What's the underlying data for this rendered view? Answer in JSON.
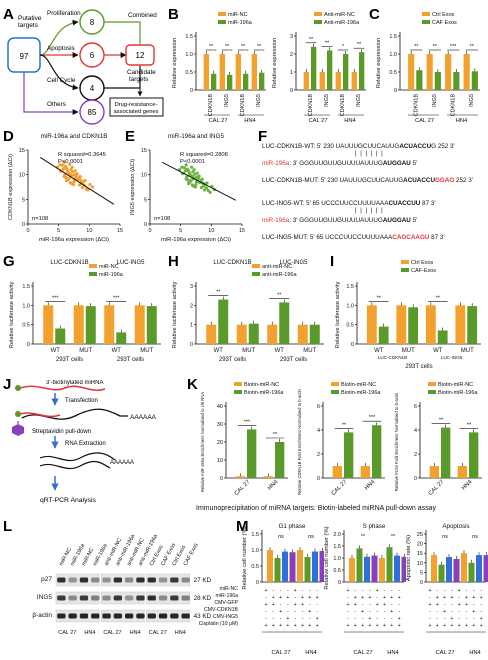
{
  "colors": {
    "orange": "#f2a02e",
    "green": "#5a9a2a",
    "blue": "#2f6fd6",
    "red": "#e23636",
    "purple": "#8a3fbf",
    "ink": "#111111",
    "scatter_orange": "#f2a02e",
    "scatter_green": "#6db33f"
  },
  "panel_letters": {
    "A": "A",
    "B": "B",
    "C": "C",
    "D": "D",
    "E": "E",
    "F": "F",
    "G": "G",
    "H": "H",
    "I": "I",
    "J": "J",
    "K": "K",
    "L": "L",
    "M": "M"
  },
  "panelA": {
    "putative_label": "Putative\ntargets",
    "putative_value": "97",
    "proliferation": "Proliferation",
    "apoptosis": "Apoptosis",
    "cell_cycle": "Cell Cycle",
    "others": "Others",
    "count_prolif": "8",
    "count_apop": "6",
    "count_cycle": "4",
    "count_others": "85",
    "combined": "Combined",
    "combined_value": "12",
    "candidate": "Candidate\ntargets",
    "drug": "Drug-resistance-\nassociated genes"
  },
  "chart_data": [
    {
      "id": "B1",
      "type": "bar",
      "title": "",
      "ylabel": "Relative expression",
      "ylim": [
        0,
        1.5
      ],
      "yticks": [
        "0",
        "0.5",
        "1.0",
        "1.5"
      ],
      "categories": [
        "CDKN1B",
        "ING5",
        "CDKN1B",
        "ING5"
      ],
      "groups": [
        "CAL 27",
        "HN4"
      ],
      "series": [
        {
          "name": "miR-NC",
          "values": [
            1.0,
            1.0,
            1.0,
            1.0
          ]
        },
        {
          "name": "miR-196a",
          "values": [
            0.45,
            0.42,
            0.45,
            0.48
          ]
        }
      ],
      "sig": [
        "**",
        "**",
        "**",
        "**"
      ]
    },
    {
      "id": "B2",
      "type": "bar",
      "title": "",
      "ylabel": "Relative expression",
      "ylim": [
        0,
        3
      ],
      "yticks": [
        "0",
        "1",
        "2",
        "3"
      ],
      "categories": [
        "CDKN1B",
        "ING5",
        "CDKN1B",
        "ING5"
      ],
      "groups": [
        "CAL 27",
        "HN4"
      ],
      "series": [
        {
          "name": "Anti-miR-NC",
          "values": [
            1.0,
            1.0,
            1.0,
            1.0
          ]
        },
        {
          "name": "Anti-miR-196a",
          "values": [
            2.4,
            2.2,
            2.0,
            2.1
          ]
        }
      ],
      "sig": [
        "**",
        "**",
        "*",
        "**"
      ]
    },
    {
      "id": "C",
      "type": "bar",
      "title": "",
      "ylabel": "Relative expression",
      "ylim": [
        0,
        1.5
      ],
      "yticks": [
        "0",
        "0.5",
        "1.0",
        "1.5"
      ],
      "categories": [
        "CDKN1B",
        "ING5",
        "CDKN1B",
        "ING5"
      ],
      "groups": [
        "CAL 27",
        "HN4"
      ],
      "series": [
        {
          "name": "Ctrl Exos",
          "values": [
            1.0,
            1.0,
            1.0,
            1.0
          ]
        },
        {
          "name": "CAF Exos",
          "values": [
            0.55,
            0.5,
            0.5,
            0.52
          ]
        }
      ],
      "sig": [
        "**",
        "**",
        "***",
        "**"
      ]
    },
    {
      "id": "D",
      "type": "scatter",
      "title": "miR-196a and CDKN1B",
      "xlabel": "miR-196a expression (ΔCt)",
      "ylabel": "CDKN1B expression (ΔCt)",
      "xlim": [
        0,
        15
      ],
      "ylim": [
        0,
        15
      ],
      "xticks": [
        "0",
        "5",
        "10",
        "15"
      ],
      "yticks": [
        "0",
        "5",
        "10",
        "15"
      ],
      "annot": [
        "R squared=0.3645",
        "P<0.0001"
      ],
      "n": "n=108",
      "fit": [
        [
          2,
          13.5
        ],
        [
          14,
          4.0
        ]
      ],
      "points": [
        [
          6.5,
          10.5
        ],
        [
          7.2,
          9.8
        ],
        [
          5.8,
          11.2
        ],
        [
          8.1,
          9.0
        ],
        [
          6.9,
          10.1
        ],
        [
          7.5,
          8.6
        ],
        [
          5.2,
          12.0
        ],
        [
          8.8,
          8.2
        ],
        [
          6.1,
          11.7
        ],
        [
          7.8,
          9.5
        ],
        [
          9.5,
          7.1
        ],
        [
          6.7,
          9.2
        ],
        [
          7.0,
          11.0
        ],
        [
          5.5,
          10.8
        ],
        [
          8.4,
          7.9
        ],
        [
          7.3,
          10.6
        ],
        [
          6.3,
          8.8
        ],
        [
          9.0,
          8.5
        ],
        [
          10.5,
          7.5
        ],
        [
          4.8,
          11.5
        ],
        [
          7.6,
          9.1
        ],
        [
          8.0,
          10.2
        ],
        [
          6.8,
          12.1
        ],
        [
          5.9,
          9.6
        ],
        [
          8.6,
          8.9
        ],
        [
          7.1,
          8.2
        ],
        [
          6.4,
          10.9
        ],
        [
          9.2,
          7.8
        ],
        [
          7.9,
          9.9
        ],
        [
          5.6,
          11.9
        ],
        [
          8.3,
          9.3
        ],
        [
          6.6,
          10.4
        ],
        [
          7.4,
          8.0
        ],
        [
          9.8,
          6.9
        ],
        [
          6.2,
          9.4
        ],
        [
          8.7,
          8.6
        ],
        [
          5.9,
          12.5
        ],
        [
          7.7,
          10.8
        ],
        [
          6.0,
          10.0
        ],
        [
          8.9,
          7.4
        ],
        [
          7.2,
          11.5
        ],
        [
          10.1,
          8.0
        ],
        [
          6.5,
          9.0
        ],
        [
          7.0,
          9.7
        ],
        [
          5.3,
          10.7
        ],
        [
          8.5,
          9.6
        ],
        [
          6.9,
          8.4
        ],
        [
          7.6,
          10.0
        ],
        [
          9.3,
          8.8
        ],
        [
          6.3,
          11.3
        ]
      ]
    },
    {
      "id": "E",
      "type": "scatter",
      "title": "miR-196a and ING5",
      "xlabel": "miR-196a expression (ΔCt)",
      "ylabel": "ING5 expression (ΔCt)",
      "xlim": [
        0,
        15
      ],
      "ylim": [
        0,
        15
      ],
      "xticks": [
        "0",
        "5",
        "10",
        "15"
      ],
      "yticks": [
        "0",
        "5",
        "10",
        "15"
      ],
      "annot": [
        "R squared=0.2808",
        "P<0.0001"
      ],
      "n": "n=108",
      "fit": [
        [
          2,
          12.5
        ],
        [
          14,
          4.8
        ]
      ],
      "points": [
        [
          6.5,
          10.0
        ],
        [
          7.2,
          9.3
        ],
        [
          5.8,
          10.8
        ],
        [
          8.1,
          8.4
        ],
        [
          6.9,
          9.7
        ],
        [
          7.5,
          8.0
        ],
        [
          5.2,
          11.5
        ],
        [
          8.8,
          7.7
        ],
        [
          6.1,
          11.1
        ],
        [
          7.8,
          9.0
        ],
        [
          9.5,
          6.8
        ],
        [
          6.7,
          8.8
        ],
        [
          7.0,
          10.6
        ],
        [
          5.5,
          10.3
        ],
        [
          8.4,
          7.4
        ],
        [
          7.3,
          10.1
        ],
        [
          6.3,
          8.2
        ],
        [
          9.0,
          8.1
        ],
        [
          10.5,
          7.0
        ],
        [
          4.8,
          11.0
        ],
        [
          7.6,
          8.6
        ],
        [
          8.0,
          9.7
        ],
        [
          6.8,
          11.5
        ],
        [
          5.9,
          9.1
        ],
        [
          8.6,
          8.3
        ],
        [
          7.1,
          7.7
        ],
        [
          6.4,
          10.4
        ],
        [
          9.2,
          7.3
        ],
        [
          7.9,
          9.4
        ],
        [
          5.6,
          11.4
        ],
        [
          8.3,
          8.8
        ],
        [
          6.6,
          9.9
        ],
        [
          7.4,
          7.5
        ],
        [
          9.8,
          6.4
        ],
        [
          6.2,
          8.9
        ],
        [
          8.7,
          8.1
        ],
        [
          5.9,
          12.0
        ],
        [
          7.7,
          10.3
        ],
        [
          6.0,
          9.5
        ],
        [
          8.9,
          6.9
        ],
        [
          7.2,
          11.0
        ],
        [
          10.1,
          7.6
        ],
        [
          6.5,
          8.5
        ],
        [
          7.0,
          9.2
        ],
        [
          5.3,
          10.2
        ],
        [
          8.5,
          9.1
        ],
        [
          6.9,
          7.9
        ],
        [
          7.6,
          9.5
        ],
        [
          9.3,
          8.3
        ],
        [
          6.3,
          10.8
        ]
      ]
    },
    {
      "id": "G",
      "type": "bar",
      "title": "",
      "ylabel": "Relative luciferase activity",
      "ylim": [
        0,
        1.5
      ],
      "yticks": [
        "0",
        "0.5",
        "1.0",
        "1.5"
      ],
      "categories": [
        "WT",
        "MUT",
        "WT",
        "MUT"
      ],
      "subtitles": [
        "LUC-CDKN1B",
        "LUC-ING5"
      ],
      "xlabel": "293T cells",
      "series": [
        {
          "name": "miR-NC",
          "values": [
            1.0,
            1.0,
            1.0,
            1.0
          ]
        },
        {
          "name": "miR-196a",
          "values": [
            0.4,
            0.98,
            0.3,
            0.98
          ]
        }
      ],
      "sig": [
        "***",
        "",
        "***",
        ""
      ]
    },
    {
      "id": "H",
      "type": "bar",
      "title": "",
      "ylabel": "Relative luciferase activity",
      "ylim": [
        0,
        3
      ],
      "yticks": [
        "0",
        "1",
        "2",
        "3"
      ],
      "categories": [
        "WT",
        "MUT",
        "WT",
        "MUT"
      ],
      "subtitles": [
        "LUC-CDKN1B",
        "LUC-ING5"
      ],
      "xlabel": "293T cells",
      "series": [
        {
          "name": "anti-miR-NC",
          "values": [
            1.0,
            1.0,
            1.0,
            1.0
          ]
        },
        {
          "name": "anti-miR-196a",
          "values": [
            2.3,
            1.05,
            2.15,
            1.0
          ]
        }
      ],
      "sig": [
        "**",
        "",
        "**",
        ""
      ]
    },
    {
      "id": "I",
      "type": "bar",
      "title": "",
      "ylabel": "Relative luciferase activity",
      "ylim": [
        0,
        1.5
      ],
      "yticks": [
        "0",
        "0.5",
        "1.0",
        "1.5"
      ],
      "categories": [
        "WT",
        "MUT",
        "WT",
        "MUT"
      ],
      "subtitles": [
        "LUC-CDKN1B",
        "LUC-ING5"
      ],
      "xlabel": "293T cells",
      "series": [
        {
          "name": "Ctrl Exos",
          "values": [
            1.0,
            1.0,
            1.0,
            1.0
          ]
        },
        {
          "name": "CAF-Exos",
          "values": [
            0.45,
            0.95,
            0.35,
            0.98
          ]
        }
      ],
      "sig": [
        "**",
        "",
        "**",
        ""
      ]
    },
    {
      "id": "K1",
      "type": "bar",
      "title": "",
      "ylabel": "Relative miR-196a Enrichment Normalized to U6 RNA",
      "ylim": [
        0,
        40
      ],
      "yticks": [
        "0",
        "10",
        "20",
        "30",
        "40"
      ],
      "categories": [
        "CAL 27",
        "HN4"
      ],
      "series": [
        {
          "name": "Biotin-miR-NC",
          "values": [
            1,
            1
          ]
        },
        {
          "name": "Biotin-miR-196a",
          "values": [
            27,
            20
          ]
        }
      ],
      "sig": [
        "***",
        "**"
      ]
    },
    {
      "id": "K2",
      "type": "bar",
      "title": "",
      "ylabel": "Relative CDKN1B Fold Enrichment Normalized to b-actin",
      "ylim": [
        0,
        6
      ],
      "yticks": [
        "0",
        "2",
        "4",
        "6"
      ],
      "categories": [
        "CAL 27",
        "HN4"
      ],
      "series": [
        {
          "name": "Biotin-miR-NC",
          "values": [
            1,
            1
          ]
        },
        {
          "name": "Biotin-miR-196a",
          "values": [
            3.8,
            4.4
          ]
        }
      ],
      "sig": [
        "**",
        "***"
      ]
    },
    {
      "id": "K3",
      "type": "bar",
      "title": "",
      "ylabel": "Relative ING5 Fold Enrichment Normalized to b-actin",
      "ylim": [
        0,
        6
      ],
      "yticks": [
        "0",
        "2",
        "4",
        "6"
      ],
      "categories": [
        "CAL 27",
        "HN4"
      ],
      "series": [
        {
          "name": "Biotin-miR-NC",
          "values": [
            1,
            1
          ]
        },
        {
          "name": "Biotin-miR-196a",
          "values": [
            4.2,
            3.8
          ]
        }
      ],
      "sig": [
        "**",
        "**"
      ]
    },
    {
      "id": "M1",
      "type": "bar",
      "title": "G1 phase",
      "ylabel": "Relative cell number (%)",
      "ylim": [
        0,
        1.5
      ],
      "yticks": [
        "0",
        "0.5",
        "1.0",
        "1.5"
      ],
      "groups": [
        "CAL 27",
        "HN4"
      ],
      "series": [
        {
          "name": "miR-NC",
          "values": [
            1.0,
            1.0
          ]
        },
        {
          "name": "miR-196a",
          "values": [
            0.75,
            0.78
          ]
        },
        {
          "name": "CMV-CDKN1B",
          "values": [
            0.95,
            0.95
          ]
        },
        {
          "name": "CMV-ING5",
          "values": [
            0.93,
            0.97
          ]
        }
      ],
      "sig": [
        "ns",
        "ns"
      ]
    },
    {
      "id": "M2",
      "type": "bar",
      "title": "S phase",
      "ylabel": "Relative cell number (%)",
      "ylim": [
        0,
        2.0
      ],
      "yticks": [
        "0",
        "0.5",
        "1.0",
        "1.5",
        "2.0"
      ],
      "groups": [
        "CAL 27",
        "HN4"
      ],
      "series": [
        {
          "name": "miR-NC",
          "values": [
            1.0,
            1.0
          ]
        },
        {
          "name": "miR-196a",
          "values": [
            1.4,
            1.45
          ]
        },
        {
          "name": "CMV-CDKN1B",
          "values": [
            1.05,
            1.1
          ]
        },
        {
          "name": "CMV-ING5",
          "values": [
            1.1,
            1.05
          ]
        }
      ],
      "sig": [
        "**",
        "**"
      ]
    },
    {
      "id": "M3",
      "type": "bar",
      "title": "Apoptosis",
      "ylabel": "Apoptotic rate (%)",
      "ylim": [
        0,
        25
      ],
      "yticks": [
        "0",
        "5",
        "10",
        "15",
        "20",
        "25"
      ],
      "groups": [
        "CAL 27",
        "HN4"
      ],
      "series": [
        {
          "name": "miR-NC",
          "values": [
            14,
            15
          ]
        },
        {
          "name": "miR-196a",
          "values": [
            9,
            10
          ]
        },
        {
          "name": "CMV-CDKN1B",
          "values": [
            13,
            14
          ]
        },
        {
          "name": "CMV-ING5",
          "values": [
            12,
            14
          ]
        }
      ],
      "sig": [
        "ns",
        "ns"
      ]
    }
  ],
  "panelB": {
    "legend1": [
      "miR-NC",
      "miR-196a"
    ],
    "legend2": [
      "Anti-miR-NC",
      "Anti-miR-196a"
    ],
    "group1": "CAL 27",
    "group2": "HN4"
  },
  "panelC": {
    "legend": [
      "Ctrl Exos",
      "CAF Exos"
    ],
    "group1": "CAL 27",
    "group2": "HN4"
  },
  "panelF": {
    "l1_prefix": "LUC-CDKN1B-WT: 5'  230 UAUUUGCUUCAUUG",
    "l1_bold": "ACUACCU",
    "l1_suffix": "G 252 3'",
    "l2_red": "miR-196a",
    "l2_rest": ":  3'       GGGUUGUUGUUUUAUUUG",
    "l2_bold": "AUGGAU",
    "l2_end": "5'",
    "l3_prefix": "LUC-CDKN1B-MUT: 5'  230 UAUUUGCUUCAUUG",
    "l3_bold": "ACUACCU",
    "l3_red": "GGAG",
    "l3_suffix": " 252 3'",
    "l4_prefix": "LUC-ING5-WT: 5'  65 UCCCUUCCUUUUAAA",
    "l4_bold": "CUACCUU",
    "l4_suffix": " 87 3'",
    "l5_red": "miR-196a",
    "l5_rest": ":  3'       GGGUUGUUGUUUUAUUUG",
    "l5_bold": "AUGGAU",
    "l5_end": "5'",
    "l6_prefix": "LUC-ING5-MUT: 5'  65 UCCCUUCCUUUUAAA",
    "l6_red": "CAGCAAGU",
    "l6_suffix": " 87 3'"
  },
  "panelJ": {
    "label1": "3'-biotinylated miRNA",
    "label2": "Transfection",
    "label3": "Streptavidin pull-down",
    "label4": "RNA Extraction",
    "label5": "qRT-PCR Analysis",
    "polyA": "AAAAAA"
  },
  "panelK": {
    "legend": [
      "Biotin-miR-NC",
      "Biotin-miR-196a"
    ],
    "footnote": "Immunoprecipitation of miRNA targets: Biotin-labeled miRNA pull-down assay"
  },
  "panelL": {
    "lanes": [
      "miR-NC",
      "miR-196a",
      "miR-NC",
      "miR-196a",
      "anti-miR-NC",
      "anti-miR-196a",
      "anti-miR-NC",
      "anti-miR-196a",
      "Ctrl Exos",
      "CAF Exos",
      "Ctrl Exos",
      "CAF Exos"
    ],
    "rows": [
      "p27",
      "ING5",
      "β-actin"
    ],
    "kd": [
      "27 KD",
      "28 KD",
      "43 KD"
    ],
    "groups": [
      "CAL 27",
      "HN4",
      "CAL 27",
      "HN4",
      "CAL 27",
      "HN4"
    ]
  },
  "panelM": {
    "table_labels": [
      "miR-NC",
      "miR-196a",
      "CMV-GFP",
      "CMV-CDKN1B",
      "CMV-ING5",
      "Cisplatin (10 μM)"
    ],
    "table_signs": [
      [
        "+",
        "-",
        "-",
        "-",
        "+",
        "-",
        "-",
        "-"
      ],
      [
        "-",
        "+",
        "+",
        "+",
        "-",
        "+",
        "+",
        "+"
      ],
      [
        "+",
        "+",
        "-",
        "-",
        "+",
        "+",
        "-",
        "-"
      ],
      [
        "-",
        "-",
        "+",
        "-",
        "-",
        "-",
        "+",
        "-"
      ],
      [
        "-",
        "-",
        "-",
        "+",
        "-",
        "-",
        "-",
        "+"
      ],
      [
        "+",
        "+",
        "+",
        "+",
        "+",
        "+",
        "+",
        "+"
      ]
    ],
    "groups": [
      "CAL 27",
      "HN4"
    ]
  }
}
